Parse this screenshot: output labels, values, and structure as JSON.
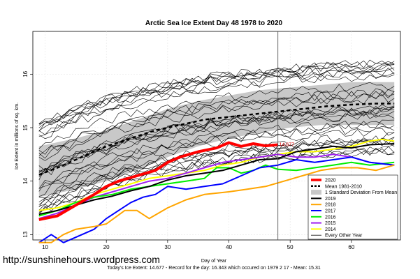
{
  "chart_data": {
    "type": "line",
    "title": "Arctic Sea Ice Extent Day 48 1978 to 2020",
    "xlabel": "Day of Year",
    "ylabel": "Ice Extent in millions of sq. km.",
    "xlim": [
      8,
      68
    ],
    "ylim": [
      12.9,
      16.8
    ],
    "x_ticks": [
      10,
      20,
      30,
      40,
      50,
      60
    ],
    "y_ticks": [
      13,
      14,
      15,
      16
    ],
    "current_day": 48,
    "annotation": "14.677",
    "band": {
      "name": "1 Standard Deviation From Mean",
      "x": [
        9,
        15,
        20,
        25,
        30,
        35,
        40,
        45,
        50,
        55,
        60,
        67
      ],
      "upper": [
        14.65,
        14.8,
        14.95,
        15.15,
        15.35,
        15.5,
        15.6,
        15.7,
        15.75,
        15.8,
        15.85,
        15.85
      ],
      "lower": [
        13.7,
        13.85,
        14.0,
        14.2,
        14.45,
        14.65,
        14.8,
        14.9,
        15.0,
        15.05,
        15.05,
        15.05
      ]
    },
    "series": [
      {
        "name": "2020",
        "color": "#ff0000",
        "width": 4,
        "x": [
          9,
          12,
          15,
          18,
          20,
          22,
          25,
          28,
          30,
          32,
          35,
          38,
          40,
          42,
          44,
          46,
          48
        ],
        "y": [
          13.28,
          13.35,
          13.55,
          13.75,
          13.9,
          14.0,
          14.1,
          14.2,
          14.35,
          14.45,
          14.55,
          14.62,
          14.72,
          14.65,
          14.7,
          14.66,
          14.68
        ]
      },
      {
        "name": "Mean 1981-2010",
        "color": "#000000",
        "width": 2.5,
        "dash": "5,4",
        "x": [
          9,
          12,
          15,
          18,
          20,
          24,
          28,
          32,
          36,
          40,
          44,
          48,
          52,
          56,
          60,
          64,
          67
        ],
        "y": [
          14.12,
          14.25,
          14.4,
          14.55,
          14.65,
          14.8,
          14.95,
          15.05,
          15.15,
          15.2,
          15.25,
          15.3,
          15.35,
          15.4,
          15.43,
          15.45,
          15.45
        ]
      },
      {
        "name": "2019",
        "color": "#000000",
        "width": 2,
        "x": [
          9,
          12,
          15,
          18,
          21,
          24,
          27,
          30,
          33,
          36,
          39,
          42,
          45,
          48,
          51,
          54,
          57,
          60,
          63,
          67
        ],
        "y": [
          13.38,
          13.45,
          13.55,
          13.65,
          13.72,
          13.82,
          13.9,
          14.02,
          14.1,
          14.15,
          14.2,
          14.3,
          14.4,
          14.42,
          14.55,
          14.6,
          14.65,
          14.62,
          14.68,
          14.7
        ]
      },
      {
        "name": "2018",
        "color": "#ffa500",
        "width": 2,
        "x": [
          9,
          11,
          13,
          15,
          18,
          20,
          23,
          25,
          27,
          30,
          33,
          36,
          40,
          43,
          46,
          49,
          52,
          55,
          58,
          61,
          64,
          67
        ],
        "y": [
          12.85,
          12.85,
          13.0,
          13.1,
          13.15,
          13.2,
          13.45,
          13.45,
          13.3,
          13.5,
          13.65,
          13.75,
          13.8,
          13.85,
          13.9,
          14.0,
          14.1,
          14.2,
          14.25,
          14.25,
          14.2,
          14.3
        ]
      },
      {
        "name": "2017",
        "color": "#0000ff",
        "width": 2,
        "x": [
          9,
          11,
          13,
          15,
          18,
          20,
          22,
          24,
          26,
          28,
          30,
          33,
          36,
          39,
          42,
          45,
          48,
          51,
          54,
          57,
          60,
          63,
          67
        ],
        "y": [
          12.85,
          13.0,
          12.85,
          12.95,
          13.1,
          13.3,
          13.45,
          13.6,
          13.7,
          13.75,
          13.9,
          13.85,
          13.9,
          13.95,
          14.1,
          14.25,
          14.3,
          14.4,
          14.35,
          14.4,
          14.45,
          14.35,
          14.3
        ]
      },
      {
        "name": "2016",
        "color": "#00ee00",
        "width": 2,
        "x": [
          9,
          12,
          15,
          18,
          21,
          24,
          27,
          30,
          33,
          36,
          38,
          40,
          42,
          44,
          46,
          48,
          51,
          54,
          57,
          60,
          63,
          67
        ],
        "y": [
          13.35,
          13.45,
          13.6,
          13.7,
          13.75,
          13.85,
          13.9,
          13.95,
          14.0,
          14.05,
          14.25,
          14.25,
          14.15,
          14.2,
          14.3,
          14.22,
          14.2,
          14.25,
          14.3,
          14.35,
          14.3,
          14.35
        ]
      },
      {
        "name": "2015",
        "color": "#a020f0",
        "width": 2,
        "x": [
          9,
          12,
          15,
          18,
          21,
          24,
          27,
          30,
          33,
          36,
          39,
          42,
          45,
          48,
          51,
          54,
          57,
          60,
          63,
          67
        ],
        "y": [
          13.3,
          13.4,
          13.55,
          13.7,
          13.8,
          13.9,
          14.0,
          14.05,
          14.15,
          14.25,
          14.35,
          14.4,
          14.45,
          14.5,
          14.45,
          14.45,
          14.5,
          14.45,
          14.35,
          14.3
        ]
      },
      {
        "name": "2014",
        "color": "#ffff00",
        "width": 2,
        "x": [
          9,
          12,
          15,
          18,
          21,
          24,
          27,
          30,
          33,
          36,
          39,
          42,
          45,
          48,
          51,
          54,
          57,
          60,
          63,
          65,
          67
        ],
        "y": [
          13.45,
          13.5,
          13.6,
          13.75,
          13.85,
          13.95,
          14.05,
          14.1,
          14.15,
          14.2,
          14.3,
          14.35,
          14.45,
          14.5,
          14.55,
          14.55,
          14.6,
          14.65,
          14.75,
          14.78,
          14.75
        ]
      }
    ],
    "other_years": {
      "name": "Every Other Year",
      "color": "#000000",
      "width": 0.6
    },
    "legend": [
      "2020",
      "Mean 1981-2010",
      "1 Standard Deviation From Mean",
      "2019",
      "2018",
      "2017",
      "2016",
      "2015",
      "2014",
      "Every Other Year"
    ],
    "legend_position": "bottom-right"
  },
  "watermark": "http://sunshinehours.wordpress.com",
  "footer": "Today's Ice Extent: 14.677 - Record for the day: 16.343 which occured on 1979 2 17 - Mean: 15.31"
}
